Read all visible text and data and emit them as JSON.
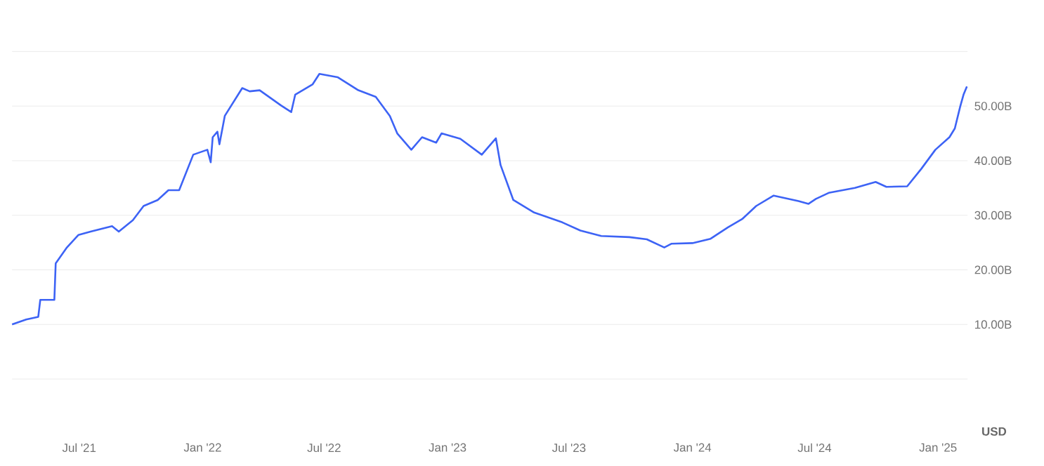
{
  "chart_data": {
    "type": "line",
    "grid": "y",
    "marker": "none",
    "line_style": "solid",
    "xlim": [
      "2021-03-23",
      "2025-02-14"
    ],
    "ylim": [
      0,
      60
    ],
    "xticks": [
      {
        "value": "2021-07-01",
        "label": "Jul '21"
      },
      {
        "value": "2022-01-01",
        "label": "Jan '22"
      },
      {
        "value": "2022-07-01",
        "label": "Jul '22"
      },
      {
        "value": "2023-01-01",
        "label": "Jan '23"
      },
      {
        "value": "2023-07-01",
        "label": "Jul '23"
      },
      {
        "value": "2024-01-01",
        "label": "Jan '24"
      },
      {
        "value": "2024-07-01",
        "label": "Jul '24"
      },
      {
        "value": "2025-01-01",
        "label": "Jan '25"
      }
    ],
    "yticks": [
      {
        "value": 0,
        "label": null
      },
      {
        "value": 10,
        "label": "10.00B"
      },
      {
        "value": 20,
        "label": "20.00B"
      },
      {
        "value": 30,
        "label": "30.00B"
      },
      {
        "value": 40,
        "label": "40.00B"
      },
      {
        "value": 50,
        "label": "50.00B"
      },
      {
        "value": 60,
        "label": null
      }
    ],
    "annotations": [
      "USD"
    ],
    "x": [
      "2021-03-23",
      "2021-04-13",
      "2021-05-01",
      "2021-05-04",
      "2021-05-25",
      "2021-05-27",
      "2021-06-12",
      "2021-06-30",
      "2021-07-18",
      "2021-08-19",
      "2021-08-29",
      "2021-09-19",
      "2021-10-05",
      "2021-10-26",
      "2021-11-11",
      "2021-11-27",
      "2021-12-18",
      "2022-01-08",
      "2022-01-13",
      "2022-01-16",
      "2022-01-23",
      "2022-01-26",
      "2022-02-03",
      "2022-03-01",
      "2022-03-12",
      "2022-03-27",
      "2022-04-28",
      "2022-05-13",
      "2022-05-19",
      "2022-06-14",
      "2022-06-24",
      "2022-07-21",
      "2022-08-21",
      "2022-09-16",
      "2022-10-07",
      "2022-10-18",
      "2022-11-08",
      "2022-11-24",
      "2022-12-15",
      "2022-12-23",
      "2023-01-20",
      "2023-02-21",
      "2023-03-14",
      "2023-03-21",
      "2023-04-09",
      "2023-05-10",
      "2023-06-21",
      "2023-07-18",
      "2023-08-18",
      "2023-09-29",
      "2023-10-25",
      "2023-11-20",
      "2023-12-01",
      "2024-01-01",
      "2024-01-28",
      "2024-02-23",
      "2024-03-15",
      "2024-04-05",
      "2024-05-01",
      "2024-06-07",
      "2024-06-22",
      "2024-07-03",
      "2024-07-22",
      "2024-08-30",
      "2024-09-30",
      "2024-10-16",
      "2024-11-16",
      "2024-12-07",
      "2024-12-28",
      "2025-01-18",
      "2025-01-26",
      "2025-02-03",
      "2025-02-08",
      "2025-02-13"
    ],
    "series": [
      {
        "color": "#3d63f5",
        "values": [
          10.0,
          10.9,
          11.4,
          14.5,
          14.5,
          21.2,
          24.0,
          26.4,
          27.0,
          28.0,
          27.0,
          29.1,
          31.7,
          32.8,
          34.6,
          34.6,
          41.1,
          42.0,
          39.7,
          44.3,
          45.3,
          43.0,
          48.2,
          53.3,
          52.7,
          52.9,
          50.1,
          48.9,
          52.1,
          54.0,
          55.9,
          55.3,
          52.9,
          51.7,
          48.2,
          45.0,
          42.0,
          44.3,
          43.3,
          45.0,
          44.0,
          41.1,
          44.1,
          39.2,
          32.8,
          30.5,
          28.7,
          27.2,
          26.2,
          26.0,
          25.6,
          24.1,
          24.8,
          24.9,
          25.7,
          27.8,
          29.3,
          31.7,
          33.6,
          32.6,
          32.1,
          33.0,
          34.1,
          35.0,
          36.1,
          35.2,
          35.3,
          38.5,
          42.0,
          44.3,
          45.9,
          49.9,
          52.1,
          53.6
        ]
      }
    ]
  }
}
